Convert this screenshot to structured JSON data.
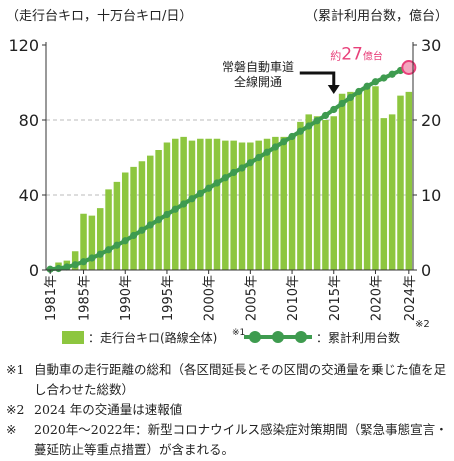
{
  "chart_data": {
    "type": "bar",
    "left_axis_title": "（走行台キロ，十万台キロ/日）",
    "right_axis_title": "（累計利用台数，億台）",
    "left_ticks": [
      0,
      40,
      80,
      120
    ],
    "left_ylim": [
      0,
      120
    ],
    "right_ticks": [
      0,
      10,
      20,
      30
    ],
    "right_ylim": [
      0,
      30
    ],
    "x_tick_labels": [
      "1981年",
      "1985年",
      "1990年",
      "1995年",
      "2000年",
      "2005年",
      "2010年",
      "2015年",
      "2020年",
      "2024年"
    ],
    "x_tick_years": [
      1981,
      1985,
      1990,
      1995,
      2000,
      2005,
      2010,
      2015,
      2020,
      2024
    ],
    "x_note_mark": "※2",
    "years": [
      1981,
      1982,
      1983,
      1984,
      1985,
      1986,
      1987,
      1988,
      1989,
      1990,
      1991,
      1992,
      1993,
      1994,
      1995,
      1996,
      1997,
      1998,
      1999,
      2000,
      2001,
      2002,
      2003,
      2004,
      2005,
      2006,
      2007,
      2008,
      2009,
      2010,
      2011,
      2012,
      2013,
      2014,
      2015,
      2016,
      2017,
      2018,
      2019,
      2020,
      2021,
      2022,
      2023,
      2024
    ],
    "gridlines_left": [
      80
    ],
    "grid": "dashed at 80 and 40",
    "series": [
      {
        "name": "：走行台キロ(路線全体)",
        "name_mark": "※1",
        "type": "bar",
        "axis": "left",
        "color": "#8dc63f",
        "values": [
          1,
          4,
          5,
          10,
          30,
          29,
          33,
          43,
          47,
          52,
          55,
          58,
          61,
          64,
          68,
          70,
          71,
          69,
          70,
          70,
          70,
          69,
          69,
          68,
          68,
          69,
          70,
          71,
          71,
          72,
          79,
          83,
          82,
          80,
          82,
          94,
          95,
          96,
          97,
          98,
          81,
          83,
          93,
          95
        ]
      },
      {
        "name": "：累計利用台数",
        "type": "line",
        "axis": "right",
        "color": "#3e9b4f",
        "values": [
          0.1,
          0.2,
          0.4,
          0.7,
          1.1,
          1.6,
          2.1,
          2.7,
          3.3,
          3.9,
          4.6,
          5.3,
          6.0,
          6.7,
          7.4,
          8.1,
          8.8,
          9.5,
          10.2,
          10.9,
          11.6,
          12.3,
          13.0,
          13.6,
          14.3,
          15.0,
          15.7,
          16.4,
          17.1,
          17.8,
          18.5,
          19.2,
          19.9,
          20.6,
          21.4,
          22.2,
          23.0,
          23.8,
          24.5,
          25.1,
          25.6,
          26.1,
          26.6,
          27.0
        ]
      }
    ],
    "annotations": {
      "opening_line1": "常磐自動車道",
      "opening_line2": "全線開通",
      "opening_year": 2015,
      "final_prefix": "約",
      "final_value": "27",
      "final_suffix": "億台",
      "final_color": "#e8407a"
    },
    "legend_placement": "bottom"
  },
  "notes": [
    {
      "mark": "※1",
      "text": "自動車の走行距離の総和（各区間延長とその区間の交通量を乗じた値を足し合わせた総数）"
    },
    {
      "mark": "※2",
      "text": "2024 年の交通量は速報値"
    },
    {
      "mark": "※",
      "text": "2020年～2022年：新型コロナウイルス感染症対策期間（緊急事態宣言・蔓延防止等重点措置）が含まれる。"
    }
  ]
}
